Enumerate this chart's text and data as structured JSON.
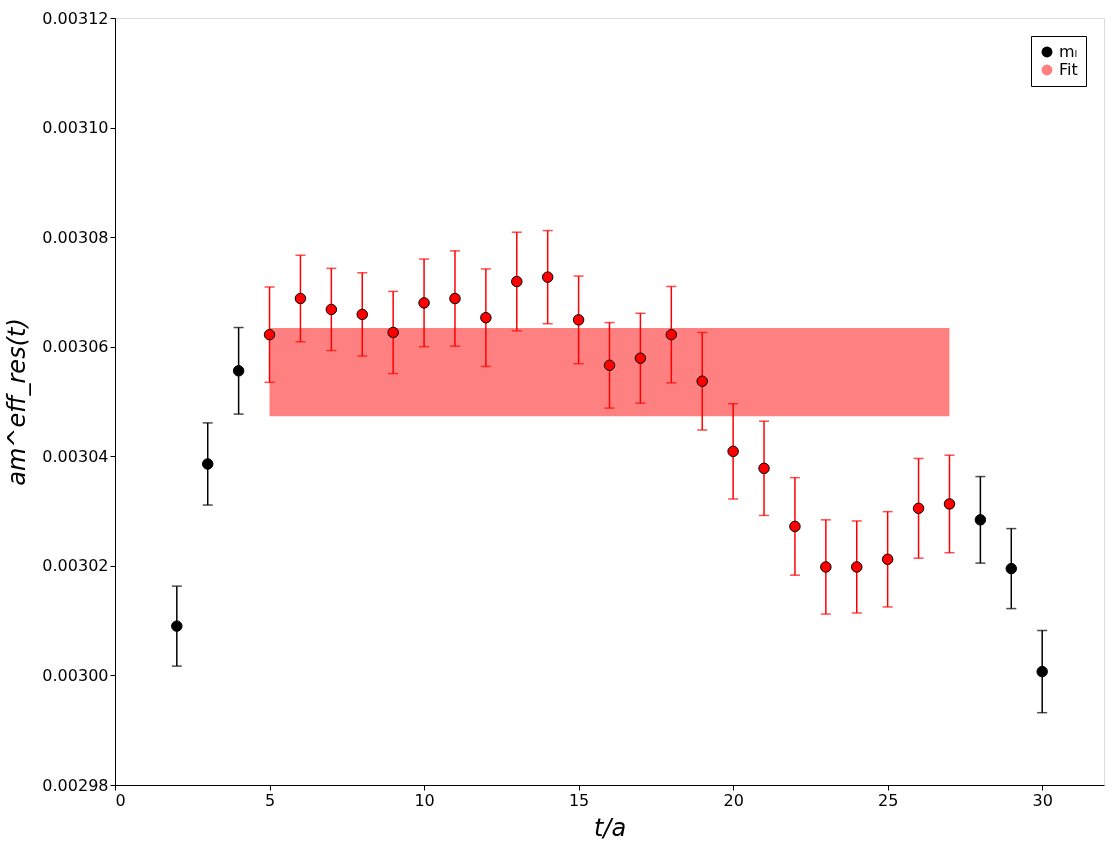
{
  "chart_data": {
    "type": "scatter",
    "xlabel": "t/a",
    "ylabel": "am^eff_res(t)",
    "xlim": [
      0,
      32
    ],
    "xticks": [
      0,
      5,
      10,
      15,
      20,
      25,
      30
    ],
    "ylim": [
      0.00298,
      0.00312
    ],
    "yticks": [
      {
        "value": 0.00298,
        "label": "0.00298"
      },
      {
        "value": 0.003,
        "label": "0.00300"
      },
      {
        "value": 0.00302,
        "label": "0.00302"
      },
      {
        "value": 0.00304,
        "label": "0.00304"
      },
      {
        "value": 0.00306,
        "label": "0.00306"
      },
      {
        "value": 0.00308,
        "label": "0.00308"
      },
      {
        "value": 0.0031,
        "label": "0.00310"
      },
      {
        "value": 0.00312,
        "label": "0.00312"
      }
    ],
    "grid": false,
    "legend": "top right",
    "marker": "circle",
    "series": [
      {
        "name": "mₗ",
        "color": "#000000",
        "x": [
          2,
          3,
          4,
          5,
          6,
          7,
          8,
          9,
          10,
          11,
          12,
          13,
          14,
          15,
          16,
          17,
          18,
          19,
          20,
          21,
          22,
          23,
          24,
          25,
          26,
          27,
          28,
          29,
          30
        ],
        "values": [
          0.003009,
          0.0030386,
          0.0030556,
          0.0030622,
          0.0030688,
          0.0030668,
          0.0030659,
          0.0030626,
          0.003068,
          0.0030688,
          0.0030653,
          0.0030719,
          0.0030727,
          0.0030649,
          0.0030566,
          0.0030579,
          0.0030622,
          0.0030537,
          0.0030409,
          0.0030378,
          0.0030272,
          0.0030198,
          0.0030198,
          0.0030212,
          0.0030305,
          0.0030313,
          0.0030284,
          0.0030195,
          0.0030007
        ],
        "errors": [
          7.3e-06,
          7.5e-06,
          7.9e-06,
          8.7e-06,
          7.9e-06,
          7.5e-06,
          7.6e-06,
          7.5e-06,
          8e-06,
          8.7e-06,
          8.9e-06,
          9e-06,
          8.5e-06,
          8e-06,
          7.8e-06,
          8.2e-06,
          8.8e-06,
          8.9e-06,
          8.7e-06,
          8.6e-06,
          8.9e-06,
          8.6e-06,
          8.4e-06,
          8.7e-06,
          9.1e-06,
          8.9e-06,
          7.9e-06,
          7.3e-06,
          7.5e-06
        ],
        "colors": [
          "#000000",
          "#000000",
          "#000000",
          "#ff0000",
          "#ff0000",
          "#ff0000",
          "#ff0000",
          "#ff0000",
          "#ff0000",
          "#ff0000",
          "#ff0000",
          "#ff0000",
          "#ff0000",
          "#ff0000",
          "#ff0000",
          "#ff0000",
          "#ff0000",
          "#ff0000",
          "#ff0000",
          "#ff0000",
          "#ff0000",
          "#ff0000",
          "#ff0000",
          "#ff0000",
          "#ff0000",
          "#ff0000",
          "#000000",
          "#000000",
          "#000000"
        ]
      },
      {
        "name": "Fit",
        "type": "area",
        "color": "#ff8080",
        "x": [
          5,
          27
        ],
        "values": [
          null,
          null
        ],
        "lower": [
          0.0030473,
          0.0030473
        ],
        "upper": [
          0.0030634,
          0.0030634
        ]
      }
    ]
  }
}
